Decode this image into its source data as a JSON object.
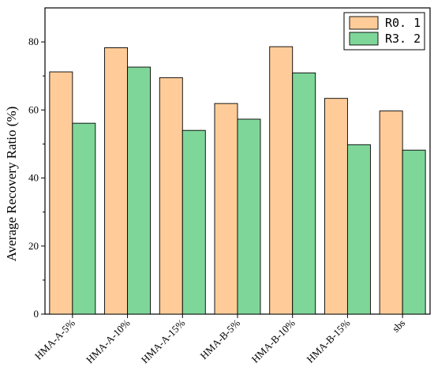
{
  "chart_data": {
    "type": "bar",
    "title": "",
    "xlabel": "",
    "ylabel": "Average Recovery Ratio (%)",
    "ylim": [
      0,
      90
    ],
    "yticks": [
      0,
      20,
      40,
      60,
      80
    ],
    "grid": false,
    "legend_position": "top-right",
    "categories": [
      "HMA-A-5%",
      "HMA-A-10%",
      "HMA-A-15%",
      "HMA-B-5%",
      "HMA-B-10%",
      "HMA-B-15%",
      "sbs"
    ],
    "series": [
      {
        "name": "R0. 1",
        "color": "#FFCC99",
        "values": [
          71.2,
          78.3,
          69.5,
          61.9,
          78.6,
          63.4,
          59.7
        ]
      },
      {
        "name": "R3. 2",
        "color": "#7FD699",
        "values": [
          56.1,
          72.6,
          54.0,
          57.3,
          70.9,
          49.8,
          48.2
        ]
      }
    ]
  }
}
